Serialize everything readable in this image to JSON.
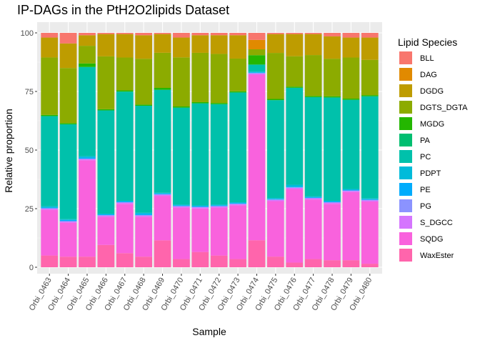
{
  "chart_data": {
    "type": "bar",
    "stacked": true,
    "title": "IP-DAGs in the PtH2O2lipids Dataset",
    "xlabel": "Sample",
    "ylabel": "Relative proportion",
    "ylim": [
      0,
      100
    ],
    "yticks": [
      0,
      25,
      50,
      75,
      100
    ],
    "grid": true,
    "legend_title": "Lipid Species",
    "legend_position": "right",
    "categories": [
      "Orbi_0463",
      "Orbi_0464",
      "Orbi_0465",
      "Orbi_0466",
      "Orbi_0467",
      "Orbi_0468",
      "Orbi_0469",
      "Orbi_0470",
      "Orbi_0471",
      "Orbi_0472",
      "Orbi_0473",
      "Orbi_0474",
      "Orbi_0475",
      "Orbi_0476",
      "Orbi_0477",
      "Orbi_0478",
      "Orbi_0479",
      "Orbi_0480"
    ],
    "series": [
      {
        "name": "BLL",
        "color": "#F8766D",
        "values": [
          2,
          4.5,
          1,
          0.5,
          0.5,
          1,
          0.5,
          2,
          1,
          1,
          1,
          3,
          0.5,
          0.5,
          0.5,
          1.5,
          2,
          2
        ]
      },
      {
        "name": "DAG",
        "color": "#E18A00",
        "values": [
          0,
          0,
          0,
          0,
          0,
          0,
          0,
          0,
          0,
          0,
          0,
          4,
          0,
          0,
          0,
          0,
          0,
          0
        ]
      },
      {
        "name": "DGDG",
        "color": "#BE9C00",
        "values": [
          8.5,
          10.5,
          4.5,
          9.5,
          10,
          10,
          8,
          8.5,
          7.5,
          8,
          10,
          0,
          8,
          9.5,
          9,
          9.5,
          8.5,
          9.5
        ]
      },
      {
        "name": "DGTS_DGTA",
        "color": "#8CAB00",
        "values": [
          24.5,
          23.5,
          7.5,
          22.5,
          14,
          19.5,
          15,
          21,
          21,
          21,
          14,
          2.5,
          19.5,
          13,
          17.5,
          16,
          17.5,
          15
        ]
      },
      {
        "name": "MGDG",
        "color": "#24B700",
        "values": [
          0.5,
          0.5,
          1.5,
          0.5,
          0.5,
          0.5,
          0.8,
          0.5,
          0.5,
          0.5,
          0.5,
          4,
          0.5,
          0.5,
          0.5,
          0.5,
          0.5,
          0.5
        ]
      },
      {
        "name": "PA",
        "color": "#00BE70",
        "values": [
          0,
          0,
          0,
          0,
          0,
          0,
          0,
          0,
          0,
          0,
          0,
          0,
          0,
          0,
          0,
          0,
          0,
          0
        ]
      },
      {
        "name": "PC",
        "color": "#00C1AB",
        "values": [
          38.5,
          40.5,
          38,
          44,
          46.5,
          45.5,
          44,
          41.5,
          43.5,
          43,
          47,
          3,
          41.5,
          41.5,
          42.5,
          44,
          38,
          43.5
        ]
      },
      {
        "name": "PDPT",
        "color": "#00BBDA",
        "values": [
          0.5,
          0.3,
          0.5,
          0.3,
          0.3,
          0.5,
          0.3,
          0.3,
          0.3,
          0.3,
          0.3,
          0.3,
          0.3,
          0.8,
          0.3,
          0.3,
          0.3,
          0.3
        ]
      },
      {
        "name": "PE",
        "color": "#00ACFC",
        "values": [
          0.3,
          0.5,
          0.5,
          0.3,
          0.3,
          0.5,
          0.3,
          0.3,
          0.3,
          0.3,
          0.3,
          0.3,
          0.3,
          0.3,
          0.3,
          0.3,
          0.3,
          0.3
        ]
      },
      {
        "name": "PG",
        "color": "#8B93FF",
        "values": [
          0.2,
          0.2,
          0.2,
          0.2,
          0.2,
          0.2,
          0.2,
          0.2,
          0.2,
          0.2,
          0.2,
          0.2,
          0.2,
          0.2,
          0.2,
          0.2,
          0.2,
          0.2
        ]
      },
      {
        "name": "S_DGCC",
        "color": "#D575FE",
        "values": [
          0.5,
          0.5,
          0.5,
          0.5,
          0.5,
          0.5,
          0.5,
          0.5,
          0.5,
          0.5,
          0.5,
          0.5,
          0.5,
          0.5,
          0.5,
          0.5,
          0.5,
          0.5
        ]
      },
      {
        "name": "SQDG",
        "color": "#F962DD",
        "values": [
          19.5,
          14.5,
          41,
          12,
          21,
          17,
          19,
          22,
          18.5,
          20.5,
          23,
          70.5,
          23.5,
          31.5,
          25.5,
          24,
          29,
          26.5
        ]
      },
      {
        "name": "WaxEster",
        "color": "#FF65AC",
        "values": [
          5,
          4.5,
          4.5,
          9.5,
          6,
          4.5,
          11.5,
          3.5,
          6.5,
          5,
          3.5,
          11.5,
          4.5,
          2,
          3.5,
          3,
          3,
          1.5
        ]
      }
    ]
  }
}
